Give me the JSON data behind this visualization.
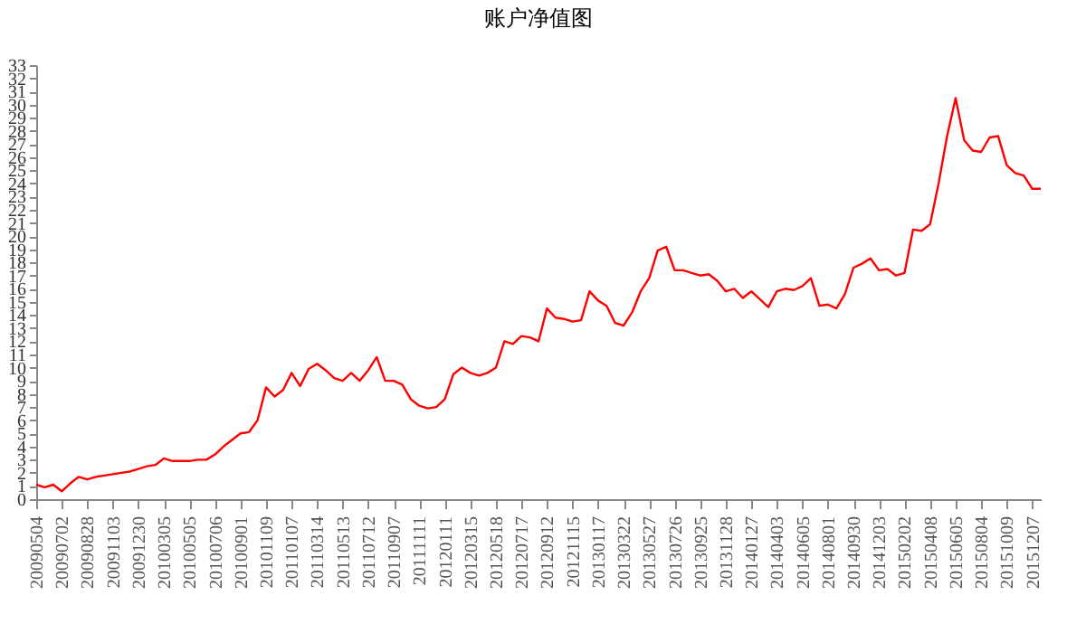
{
  "chart_data": {
    "type": "line",
    "title": "账户净值图",
    "categories": [
      "20090504",
      null,
      null,
      "20090702",
      null,
      null,
      "20090828",
      null,
      null,
      "20091103",
      null,
      null,
      "20091230",
      null,
      null,
      "20100305",
      null,
      null,
      "20100505",
      null,
      null,
      "20100706",
      null,
      null,
      "20100901",
      null,
      null,
      "20101109",
      null,
      null,
      "20110107",
      null,
      null,
      "20110314",
      null,
      null,
      "20110513",
      null,
      null,
      "20110712",
      null,
      null,
      "20110907",
      null,
      null,
      "20111111",
      null,
      null,
      "20120111",
      null,
      null,
      "20120315",
      null,
      null,
      "20120518",
      null,
      null,
      "20120717",
      null,
      null,
      "20120912",
      null,
      null,
      "20121115",
      null,
      null,
      "20130117",
      null,
      null,
      "20130322",
      null,
      null,
      "20130527",
      null,
      null,
      "20130726",
      null,
      null,
      "20130925",
      null,
      null,
      "20131128",
      null,
      null,
      "20140127",
      null,
      null,
      "20140403",
      null,
      null,
      "20140605",
      null,
      null,
      "20140801",
      null,
      null,
      "20140930",
      null,
      null,
      "20141203",
      null,
      null,
      "20150202",
      null,
      null,
      "20150408",
      null,
      null,
      "20150605",
      null,
      null,
      "20150804",
      null,
      null,
      "20151009",
      null,
      null,
      "20151207",
      null
    ],
    "series": [
      {
        "color": "#ff0000",
        "values": [
          1.1,
          0.9,
          1.1,
          0.6,
          1.2,
          1.7,
          1.5,
          1.7,
          1.8,
          1.9,
          2.0,
          2.1,
          2.3,
          2.5,
          2.6,
          3.1,
          2.9,
          2.9,
          2.9,
          3.0,
          3.0,
          3.4,
          4.0,
          4.5,
          5.0,
          5.1,
          6.0,
          8.5,
          7.8,
          8.3,
          9.6,
          8.6,
          9.9,
          10.3,
          9.8,
          9.2,
          9.0,
          9.6,
          9.0,
          9.8,
          10.8,
          9.0,
          9.0,
          8.7,
          7.6,
          7.1,
          6.9,
          7.0,
          7.6,
          9.5,
          10.0,
          9.6,
          9.4,
          9.6,
          10.0,
          12.0,
          11.8,
          12.4,
          12.3,
          12.0,
          14.5,
          13.8,
          13.7,
          13.5,
          13.6,
          15.8,
          15.1,
          14.7,
          13.4,
          13.2,
          14.2,
          15.8,
          16.8,
          18.9,
          19.2,
          17.4,
          17.4,
          17.2,
          17.0,
          17.1,
          16.6,
          15.8,
          16.0,
          15.3,
          15.8,
          15.2,
          14.6,
          15.8,
          16.0,
          15.9,
          16.2,
          16.8,
          14.7,
          14.8,
          14.5,
          15.6,
          17.6,
          17.9,
          18.3,
          17.4,
          17.5,
          17.0,
          17.2,
          20.5,
          20.4,
          20.9,
          24.0,
          27.6,
          30.5,
          27.3,
          26.5,
          26.4,
          27.5,
          27.6,
          25.4,
          24.8,
          24.6,
          23.6,
          23.6
        ]
      }
    ],
    "ylim": [
      0,
      33
    ],
    "yticks": [
      0,
      1,
      2,
      3,
      4,
      5,
      6,
      7,
      8,
      9,
      10,
      11,
      12,
      13,
      14,
      15,
      16,
      17,
      18,
      19,
      20,
      21,
      22,
      23,
      24,
      25,
      26,
      27,
      28,
      29,
      30,
      31,
      32,
      33
    ],
    "grid": false,
    "marker": "none",
    "line_style": "solid"
  }
}
